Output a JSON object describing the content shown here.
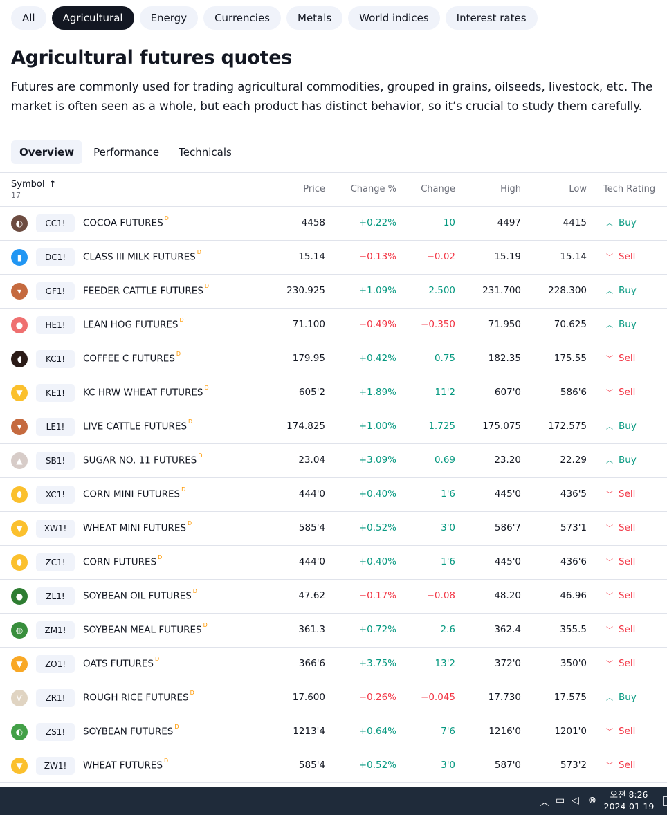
{
  "categories": [
    {
      "label": "All",
      "active": false
    },
    {
      "label": "Agricultural",
      "active": true
    },
    {
      "label": "Energy",
      "active": false
    },
    {
      "label": "Currencies",
      "active": false
    },
    {
      "label": "Metals",
      "active": false
    },
    {
      "label": "World indices",
      "active": false
    },
    {
      "label": "Interest rates",
      "active": false
    }
  ],
  "title": "Agricultural futures quotes",
  "description": "Futures are commonly used for trading agricultural commodities, grouped in grains, oilseeds, livestock, etc. The market is often seen as a whole, but each product has distinct behavior, so it’s crucial to study them carefully.",
  "tabs": [
    {
      "label": "Overview",
      "active": true
    },
    {
      "label": "Performance",
      "active": false
    },
    {
      "label": "Technicals",
      "active": false
    }
  ],
  "table": {
    "headers": {
      "symbol": "Symbol",
      "count": "17",
      "price": "Price",
      "change_pct": "Change %",
      "change": "Change",
      "high": "High",
      "low": "Low",
      "rating": "Tech Rating"
    },
    "delayed_mark": "D",
    "rows": [
      {
        "ticker": "CC1!",
        "name": "COCOA FUTURES",
        "price": "4458",
        "change_pct": "+0.22%",
        "change": "10",
        "high": "4497",
        "low": "4415",
        "rating": "Buy",
        "icon": "cocoa-bean-icon",
        "icon_color": "#6d4c41",
        "glyph": "◐"
      },
      {
        "ticker": "DC1!",
        "name": "CLASS III MILK FUTURES",
        "price": "15.14",
        "change_pct": "−0.13%",
        "change": "−0.02",
        "high": "15.19",
        "low": "15.14",
        "rating": "Sell",
        "icon": "milk-bottle-icon",
        "icon_color": "#2196f3",
        "glyph": "▮"
      },
      {
        "ticker": "GF1!",
        "name": "FEEDER CATTLE FUTURES",
        "price": "230.925",
        "change_pct": "+1.09%",
        "change": "2.500",
        "high": "231.700",
        "low": "228.300",
        "rating": "Buy",
        "icon": "cattle-icon",
        "icon_color": "#c56a3f",
        "glyph": "▾"
      },
      {
        "ticker": "HE1!",
        "name": "LEAN HOG FUTURES",
        "price": "71.100",
        "change_pct": "−0.49%",
        "change": "−0.350",
        "high": "71.950",
        "low": "70.625",
        "rating": "Buy",
        "icon": "hog-icon",
        "icon_color": "#ef7070",
        "glyph": "●"
      },
      {
        "ticker": "KC1!",
        "name": "COFFEE C FUTURES",
        "price": "179.95",
        "change_pct": "+0.42%",
        "change": "0.75",
        "high": "182.35",
        "low": "175.55",
        "rating": "Sell",
        "icon": "coffee-bean-icon",
        "icon_color": "#2b1b17",
        "glyph": "◖"
      },
      {
        "ticker": "KE1!",
        "name": "KC HRW WHEAT FUTURES",
        "price": "605'2",
        "change_pct": "+1.89%",
        "change": "11'2",
        "high": "607'0",
        "low": "586'6",
        "rating": "Sell",
        "icon": "wheat-icon",
        "icon_color": "#fbc02d",
        "glyph": "▼"
      },
      {
        "ticker": "LE1!",
        "name": "LIVE CATTLE FUTURES",
        "price": "174.825",
        "change_pct": "+1.00%",
        "change": "1.725",
        "high": "175.075",
        "low": "172.575",
        "rating": "Buy",
        "icon": "cattle-icon",
        "icon_color": "#c56a3f",
        "glyph": "▾"
      },
      {
        "ticker": "SB1!",
        "name": "SUGAR NO. 11 FUTURES",
        "price": "23.04",
        "change_pct": "+3.09%",
        "change": "0.69",
        "high": "23.20",
        "low": "22.29",
        "rating": "Buy",
        "icon": "sugar-icon",
        "icon_color": "#d7ccc8",
        "glyph": "▲"
      },
      {
        "ticker": "XC1!",
        "name": "CORN MINI FUTURES",
        "price": "444'0",
        "change_pct": "+0.40%",
        "change": "1'6",
        "high": "445'0",
        "low": "436'5",
        "rating": "Sell",
        "icon": "corn-icon",
        "icon_color": "#fbc02d",
        "glyph": "⬮"
      },
      {
        "ticker": "XW1!",
        "name": "WHEAT MINI FUTURES",
        "price": "585'4",
        "change_pct": "+0.52%",
        "change": "3'0",
        "high": "586'7",
        "low": "573'1",
        "rating": "Sell",
        "icon": "wheat-icon",
        "icon_color": "#fbc02d",
        "glyph": "▼"
      },
      {
        "ticker": "ZC1!",
        "name": "CORN FUTURES",
        "price": "444'0",
        "change_pct": "+0.40%",
        "change": "1'6",
        "high": "445'0",
        "low": "436'6",
        "rating": "Sell",
        "icon": "corn-icon",
        "icon_color": "#fbc02d",
        "glyph": "⬮"
      },
      {
        "ticker": "ZL1!",
        "name": "SOYBEAN OIL FUTURES",
        "price": "47.62",
        "change_pct": "−0.17%",
        "change": "−0.08",
        "high": "48.20",
        "low": "46.96",
        "rating": "Sell",
        "icon": "oil-drop-icon",
        "icon_color": "#2e7d32",
        "glyph": "●"
      },
      {
        "ticker": "ZM1!",
        "name": "SOYBEAN MEAL FUTURES",
        "price": "361.3",
        "change_pct": "+0.72%",
        "change": "2.6",
        "high": "362.4",
        "low": "355.5",
        "rating": "Sell",
        "icon": "soybean-meal-icon",
        "icon_color": "#388e3c",
        "glyph": "◍"
      },
      {
        "ticker": "ZO1!",
        "name": "OATS FUTURES",
        "price": "366'6",
        "change_pct": "+3.75%",
        "change": "13'2",
        "high": "372'0",
        "low": "350'0",
        "rating": "Sell",
        "icon": "oats-icon",
        "icon_color": "#f9a825",
        "glyph": "▼"
      },
      {
        "ticker": "ZR1!",
        "name": "ROUGH RICE FUTURES",
        "price": "17.600",
        "change_pct": "−0.26%",
        "change": "−0.045",
        "high": "17.730",
        "low": "17.575",
        "rating": "Buy",
        "icon": "rice-icon",
        "icon_color": "#e0d4c2",
        "glyph": "Ѵ"
      },
      {
        "ticker": "ZS1!",
        "name": "SOYBEAN FUTURES",
        "price": "1213'4",
        "change_pct": "+0.64%",
        "change": "7'6",
        "high": "1216'0",
        "low": "1201'0",
        "rating": "Sell",
        "icon": "soybean-icon",
        "icon_color": "#43a047",
        "glyph": "◐"
      },
      {
        "ticker": "ZW1!",
        "name": "WHEAT FUTURES",
        "price": "585'4",
        "change_pct": "+0.52%",
        "change": "3'0",
        "high": "587'0",
        "low": "573'2",
        "rating": "Sell",
        "icon": "wheat-icon",
        "icon_color": "#fbc02d",
        "glyph": "▼"
      }
    ]
  },
  "taskbar": {
    "time": "오전 8:26",
    "date": "2024-01-19",
    "icons": [
      "chevron-up-icon",
      "network-icon",
      "volume-icon",
      "close-circle-icon"
    ]
  }
}
